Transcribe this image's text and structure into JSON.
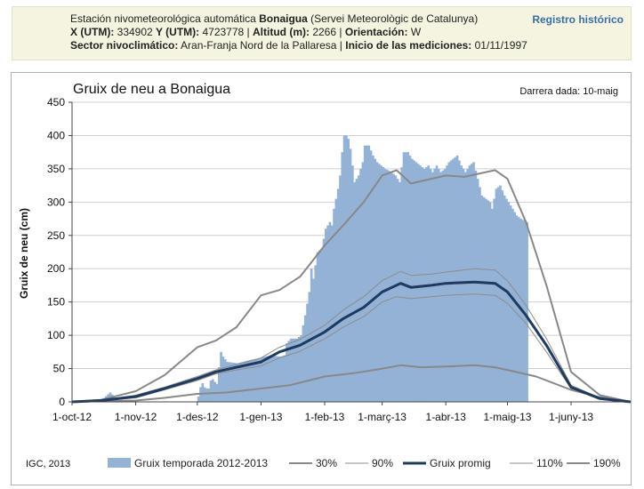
{
  "header": {
    "line1_prefix": "Estación nivometeorológica automática ",
    "station_name": "Bonaigua",
    "line1_suffix": " (Servei Meteorològic de Catalunya)",
    "x_label": "X (UTM):",
    "x_value": " 334902 ",
    "y_label": "Y (UTM):",
    "y_value": " 4723778 | ",
    "alt_label": "Altitud (m):",
    "alt_value": " 2266 | ",
    "orient_label": "Orientación:",
    "orient_value": " W",
    "sector_label": "Sector nivoclimático:",
    "sector_value": " Aran-Franja Nord de la Pallaresa | ",
    "start_label": "Inicio de las mediciones:",
    "start_value": " 01/11/1997",
    "registry_link": "Registro histórico"
  },
  "chart_data": {
    "type": "bar",
    "title": "Gruix de neu a Bonaigua",
    "last_update": "Darrera dada: 10-maig",
    "copyright": "IGC, 2013",
    "xlabel": "",
    "ylabel": "Gruix de neu (cm)",
    "ylim": [
      0,
      450
    ],
    "yticks": [
      0,
      50,
      100,
      150,
      200,
      250,
      300,
      350,
      400,
      450
    ],
    "xlim": [
      "2012-10-01",
      "2013-06-30"
    ],
    "xtick_labels": [
      {
        "date": "2012-10-01",
        "label": "1-oct-12"
      },
      {
        "date": "2012-11-01",
        "label": "1-nov-12"
      },
      {
        "date": "2012-12-01",
        "label": "1-des-12"
      },
      {
        "date": "2013-01-01",
        "label": "1-gen-13"
      },
      {
        "date": "2013-02-01",
        "label": "1-feb-13"
      },
      {
        "date": "2013-03-01",
        "label": "1-març-13"
      },
      {
        "date": "2013-04-01",
        "label": "1-abr-13"
      },
      {
        "date": "2013-05-01",
        "label": "1-maig-13"
      },
      {
        "date": "2013-06-01",
        "label": "1-juny-13"
      }
    ],
    "grid": true,
    "legend_position": "bottom",
    "colors": {
      "bars": "#94b2d6",
      "promig": "#1f3a5f",
      "p30": "#888888",
      "p90": "#8c8c8c",
      "p110": "#8c8c8c",
      "p190": "#888888"
    },
    "series": [
      {
        "name": "Gruix temporada 2012-2013",
        "kind": "bar",
        "points": [
          [
            "2012-10-01",
            2
          ],
          [
            "2012-10-14",
            2
          ],
          [
            "2012-10-15",
            3
          ],
          [
            "2012-10-19",
            14
          ],
          [
            "2012-10-20",
            11
          ],
          [
            "2012-10-21",
            6
          ],
          [
            "2012-10-23",
            2
          ],
          [
            "2012-11-01",
            0
          ],
          [
            "2012-11-30",
            0
          ],
          [
            "2012-12-01",
            8
          ],
          [
            "2012-12-02",
            22
          ],
          [
            "2012-12-03",
            28
          ],
          [
            "2012-12-04",
            22
          ],
          [
            "2012-12-05",
            20
          ],
          [
            "2012-12-06",
            20
          ],
          [
            "2012-12-07",
            32
          ],
          [
            "2012-12-08",
            34
          ],
          [
            "2012-12-09",
            30
          ],
          [
            "2012-12-10",
            27
          ],
          [
            "2012-12-11",
            52
          ],
          [
            "2012-12-12",
            75
          ],
          [
            "2012-12-13",
            68
          ],
          [
            "2012-12-15",
            60
          ],
          [
            "2012-12-20",
            58
          ],
          [
            "2012-12-25",
            62
          ],
          [
            "2012-12-31",
            66
          ],
          [
            "2013-01-05",
            70
          ],
          [
            "2013-01-10",
            68
          ],
          [
            "2013-01-12",
            70
          ],
          [
            "2013-01-13",
            88
          ],
          [
            "2013-01-15",
            95
          ],
          [
            "2013-01-18",
            95
          ],
          [
            "2013-01-20",
            100
          ],
          [
            "2013-01-22",
            130
          ],
          [
            "2013-01-24",
            165
          ],
          [
            "2013-01-25",
            200
          ],
          [
            "2013-01-26",
            185
          ],
          [
            "2013-01-28",
            225
          ],
          [
            "2013-01-30",
            230
          ],
          [
            "2013-02-01",
            260
          ],
          [
            "2013-02-03",
            270
          ],
          [
            "2013-02-04",
            265
          ],
          [
            "2013-02-05",
            290
          ],
          [
            "2013-02-07",
            320
          ],
          [
            "2013-02-08",
            340
          ],
          [
            "2013-02-09",
            375
          ],
          [
            "2013-02-10",
            400
          ],
          [
            "2013-02-11",
            400
          ],
          [
            "2013-02-12",
            395
          ],
          [
            "2013-02-13",
            380
          ],
          [
            "2013-02-15",
            330
          ],
          [
            "2013-02-17",
            340
          ],
          [
            "2013-02-19",
            360
          ],
          [
            "2013-02-20",
            385
          ],
          [
            "2013-02-22",
            385
          ],
          [
            "2013-02-24",
            370
          ],
          [
            "2013-02-26",
            360
          ],
          [
            "2013-02-28",
            355
          ],
          [
            "2013-03-02",
            350
          ],
          [
            "2013-03-05",
            345
          ],
          [
            "2013-03-07",
            340
          ],
          [
            "2013-03-09",
            330
          ],
          [
            "2013-03-11",
            375
          ],
          [
            "2013-03-13",
            375
          ],
          [
            "2013-03-15",
            365
          ],
          [
            "2013-03-17",
            360
          ],
          [
            "2013-03-19",
            355
          ],
          [
            "2013-03-21",
            350
          ],
          [
            "2013-03-23",
            355
          ],
          [
            "2013-03-25",
            345
          ],
          [
            "2013-03-27",
            355
          ],
          [
            "2013-03-29",
            345
          ],
          [
            "2013-03-31",
            350
          ],
          [
            "2013-04-02",
            360
          ],
          [
            "2013-04-04",
            365
          ],
          [
            "2013-04-06",
            370
          ],
          [
            "2013-04-08",
            355
          ],
          [
            "2013-04-10",
            345
          ],
          [
            "2013-04-12",
            355
          ],
          [
            "2013-04-14",
            360
          ],
          [
            "2013-04-16",
            335
          ],
          [
            "2013-04-18",
            310
          ],
          [
            "2013-04-20",
            305
          ],
          [
            "2013-04-22",
            300
          ],
          [
            "2013-04-23",
            290
          ],
          [
            "2013-04-25",
            320
          ],
          [
            "2013-04-27",
            325
          ],
          [
            "2013-04-29",
            310
          ],
          [
            "2013-05-01",
            300
          ],
          [
            "2013-05-03",
            290
          ],
          [
            "2013-05-05",
            280
          ],
          [
            "2013-05-07",
            275
          ],
          [
            "2013-05-10",
            270
          ]
        ]
      },
      {
        "name": "30%",
        "kind": "line",
        "points": [
          [
            "2012-10-01",
            0
          ],
          [
            "2012-11-01",
            2
          ],
          [
            "2012-11-15",
            6
          ],
          [
            "2012-12-01",
            12
          ],
          [
            "2012-12-15",
            14
          ],
          [
            "2013-01-01",
            20
          ],
          [
            "2013-01-15",
            25
          ],
          [
            "2013-02-01",
            38
          ],
          [
            "2013-02-15",
            43
          ],
          [
            "2013-03-01",
            50
          ],
          [
            "2013-03-10",
            55
          ],
          [
            "2013-03-20",
            52
          ],
          [
            "2013-04-01",
            53
          ],
          [
            "2013-04-15",
            55
          ],
          [
            "2013-04-25",
            52
          ],
          [
            "2013-05-01",
            48
          ],
          [
            "2013-05-15",
            38
          ],
          [
            "2013-06-01",
            18
          ],
          [
            "2013-06-15",
            7
          ],
          [
            "2013-06-30",
            0
          ]
        ]
      },
      {
        "name": "90%",
        "kind": "line",
        "points": [
          [
            "2012-10-01",
            0
          ],
          [
            "2012-10-15",
            2
          ],
          [
            "2012-11-01",
            6
          ],
          [
            "2012-11-15",
            18
          ],
          [
            "2012-12-01",
            32
          ],
          [
            "2012-12-10",
            42
          ],
          [
            "2012-12-20",
            48
          ],
          [
            "2013-01-01",
            54
          ],
          [
            "2013-01-10",
            66
          ],
          [
            "2013-01-20",
            76
          ],
          [
            "2013-02-01",
            95
          ],
          [
            "2013-02-10",
            112
          ],
          [
            "2013-02-20",
            128
          ],
          [
            "2013-03-01",
            150
          ],
          [
            "2013-03-08",
            158
          ],
          [
            "2013-03-15",
            155
          ],
          [
            "2013-03-25",
            158
          ],
          [
            "2013-04-01",
            160
          ],
          [
            "2013-04-15",
            162
          ],
          [
            "2013-04-25",
            160
          ],
          [
            "2013-05-01",
            148
          ],
          [
            "2013-05-10",
            118
          ],
          [
            "2013-05-20",
            75
          ],
          [
            "2013-06-01",
            20
          ],
          [
            "2013-06-15",
            5
          ],
          [
            "2013-06-30",
            0
          ]
        ]
      },
      {
        "name": "Gruix promig",
        "kind": "line",
        "points": [
          [
            "2012-10-01",
            0
          ],
          [
            "2012-10-15",
            2
          ],
          [
            "2012-11-01",
            8
          ],
          [
            "2012-11-15",
            20
          ],
          [
            "2012-12-01",
            35
          ],
          [
            "2012-12-10",
            45
          ],
          [
            "2012-12-20",
            52
          ],
          [
            "2013-01-01",
            60
          ],
          [
            "2013-01-10",
            75
          ],
          [
            "2013-01-20",
            85
          ],
          [
            "2013-02-01",
            105
          ],
          [
            "2013-02-10",
            125
          ],
          [
            "2013-02-20",
            142
          ],
          [
            "2013-03-01",
            165
          ],
          [
            "2013-03-10",
            178
          ],
          [
            "2013-03-15",
            172
          ],
          [
            "2013-03-25",
            175
          ],
          [
            "2013-04-01",
            178
          ],
          [
            "2013-04-15",
            180
          ],
          [
            "2013-04-25",
            178
          ],
          [
            "2013-05-01",
            165
          ],
          [
            "2013-05-10",
            130
          ],
          [
            "2013-05-20",
            85
          ],
          [
            "2013-06-01",
            22
          ],
          [
            "2013-06-15",
            5
          ],
          [
            "2013-06-30",
            0
          ]
        ]
      },
      {
        "name": "110%",
        "kind": "line",
        "points": [
          [
            "2012-10-01",
            0
          ],
          [
            "2012-10-15",
            2
          ],
          [
            "2012-11-01",
            10
          ],
          [
            "2012-11-15",
            22
          ],
          [
            "2012-12-01",
            38
          ],
          [
            "2012-12-10",
            48
          ],
          [
            "2012-12-20",
            56
          ],
          [
            "2013-01-01",
            66
          ],
          [
            "2013-01-10",
            82
          ],
          [
            "2013-01-20",
            94
          ],
          [
            "2013-02-01",
            115
          ],
          [
            "2013-02-10",
            138
          ],
          [
            "2013-02-20",
            158
          ],
          [
            "2013-03-01",
            182
          ],
          [
            "2013-03-10",
            196
          ],
          [
            "2013-03-15",
            190
          ],
          [
            "2013-03-25",
            192
          ],
          [
            "2013-04-01",
            195
          ],
          [
            "2013-04-15",
            200
          ],
          [
            "2013-04-25",
            198
          ],
          [
            "2013-05-01",
            182
          ],
          [
            "2013-05-10",
            145
          ],
          [
            "2013-05-20",
            95
          ],
          [
            "2013-06-01",
            25
          ],
          [
            "2013-06-15",
            6
          ],
          [
            "2013-06-30",
            0
          ]
        ]
      },
      {
        "name": "190%",
        "kind": "line",
        "points": [
          [
            "2012-10-01",
            0
          ],
          [
            "2012-10-15",
            3
          ],
          [
            "2012-11-01",
            16
          ],
          [
            "2012-11-15",
            40
          ],
          [
            "2012-12-01",
            82
          ],
          [
            "2012-12-10",
            92
          ],
          [
            "2012-12-20",
            112
          ],
          [
            "2013-01-01",
            160
          ],
          [
            "2013-01-10",
            168
          ],
          [
            "2013-01-20",
            188
          ],
          [
            "2013-02-01",
            235
          ],
          [
            "2013-02-10",
            265
          ],
          [
            "2013-02-20",
            300
          ],
          [
            "2013-03-01",
            340
          ],
          [
            "2013-03-08",
            348
          ],
          [
            "2013-03-15",
            328
          ],
          [
            "2013-03-25",
            335
          ],
          [
            "2013-04-01",
            340
          ],
          [
            "2013-04-10",
            338
          ],
          [
            "2013-04-25",
            348
          ],
          [
            "2013-05-01",
            335
          ],
          [
            "2013-05-10",
            270
          ],
          [
            "2013-05-20",
            175
          ],
          [
            "2013-06-01",
            45
          ],
          [
            "2013-06-15",
            10
          ],
          [
            "2013-06-30",
            0
          ]
        ]
      }
    ]
  }
}
